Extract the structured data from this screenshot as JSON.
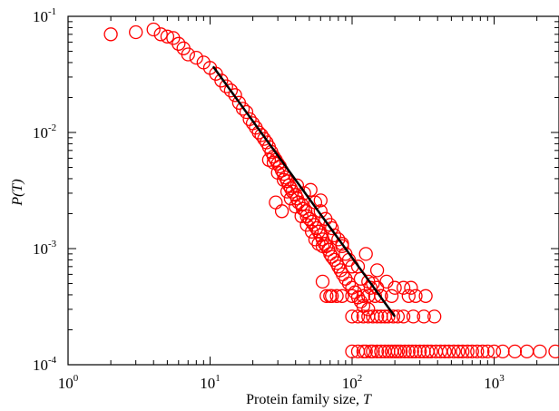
{
  "chart_data": {
    "type": "scatter",
    "title": "",
    "xlabel": "Protein family size, ",
    "xlabel_var": "T",
    "ylabel": "P(T)",
    "xscale": "log",
    "yscale": "log",
    "xlim": [
      1,
      3000
    ],
    "ylim": [
      0.0001,
      0.1
    ],
    "grid": false,
    "legend": "none",
    "x_ticks": [
      {
        "value": 1,
        "base": "10",
        "exp": "0"
      },
      {
        "value": 10,
        "base": "10",
        "exp": "1"
      },
      {
        "value": 100,
        "base": "10",
        "exp": "2"
      },
      {
        "value": 1000,
        "base": "10",
        "exp": "3"
      }
    ],
    "y_ticks": [
      {
        "value": 0.0001,
        "base": "10",
        "exp": "-4"
      },
      {
        "value": 0.001,
        "base": "10",
        "exp": "-3"
      },
      {
        "value": 0.01,
        "base": "10",
        "exp": "-2"
      },
      {
        "value": 0.1,
        "base": "10",
        "exp": "-1"
      }
    ],
    "series": [
      {
        "marker": "open-circle",
        "color": "#ff0000",
        "points": [
          [
            2,
            0.07
          ],
          [
            3,
            0.073
          ],
          [
            4,
            0.077
          ],
          [
            4.5,
            0.07
          ],
          [
            5,
            0.067
          ],
          [
            5.5,
            0.065
          ],
          [
            6,
            0.058
          ],
          [
            6.5,
            0.053
          ],
          [
            7,
            0.047
          ],
          [
            8,
            0.044
          ],
          [
            9,
            0.04
          ],
          [
            10,
            0.036
          ],
          [
            11,
            0.032
          ],
          [
            12,
            0.028
          ],
          [
            13,
            0.025
          ],
          [
            14,
            0.023
          ],
          [
            15,
            0.021
          ],
          [
            16,
            0.018
          ],
          [
            17,
            0.016
          ],
          [
            18,
            0.015
          ],
          [
            19,
            0.013
          ],
          [
            20,
            0.012
          ],
          [
            21,
            0.011
          ],
          [
            22,
            0.01
          ],
          [
            23,
            0.0095
          ],
          [
            24,
            0.0088
          ],
          [
            25,
            0.0082
          ],
          [
            26,
            0.0075
          ],
          [
            27,
            0.0068
          ],
          [
            28,
            0.0062
          ],
          [
            29,
            0.0058
          ],
          [
            30,
            0.0054
          ],
          [
            31,
            0.0051
          ],
          [
            32,
            0.0047
          ],
          [
            33,
            0.0044
          ],
          [
            34,
            0.0041
          ],
          [
            35,
            0.0038
          ],
          [
            36,
            0.0035
          ],
          [
            37,
            0.0033
          ],
          [
            38,
            0.0031
          ],
          [
            40,
            0.0029
          ],
          [
            41,
            0.0027
          ],
          [
            42,
            0.0025
          ],
          [
            44,
            0.0024
          ],
          [
            45,
            0.0022
          ],
          [
            47,
            0.0021
          ],
          [
            48,
            0.0019
          ],
          [
            50,
            0.0018
          ],
          [
            52,
            0.0017
          ],
          [
            54,
            0.0016
          ],
          [
            56,
            0.0015
          ],
          [
            58,
            0.0014
          ],
          [
            60,
            0.0013
          ],
          [
            62,
            0.0012
          ],
          [
            64,
            0.0011
          ],
          [
            66,
            0.00105
          ],
          [
            68,
            0.00098
          ],
          [
            70,
            0.0009
          ],
          [
            72,
            0.00085
          ],
          [
            75,
            0.0008
          ],
          [
            78,
            0.00075
          ],
          [
            80,
            0.0007
          ],
          [
            83,
            0.00065
          ],
          [
            86,
            0.0006
          ],
          [
            90,
            0.00055
          ],
          [
            95,
            0.0005
          ],
          [
            100,
            0.00046
          ],
          [
            105,
            0.00042
          ],
          [
            110,
            0.00038
          ],
          [
            115,
            0.00035
          ],
          [
            120,
            0.00032
          ],
          [
            130,
            0.0003
          ],
          [
            26,
            0.0058
          ],
          [
            28,
            0.0055
          ],
          [
            30,
            0.0045
          ],
          [
            33,
            0.0039
          ],
          [
            35,
            0.0031
          ],
          [
            37,
            0.0027
          ],
          [
            40,
            0.0023
          ],
          [
            44,
            0.0019
          ],
          [
            48,
            0.0016
          ],
          [
            52,
            0.0014
          ],
          [
            55,
            0.0012
          ],
          [
            58,
            0.0011
          ],
          [
            62,
            0.00105
          ],
          [
            29,
            0.0025
          ],
          [
            32,
            0.0021
          ],
          [
            41,
            0.0035
          ],
          [
            46,
            0.003
          ],
          [
            51,
            0.0032
          ],
          [
            55,
            0.0025
          ],
          [
            60,
            0.0021
          ],
          [
            65,
            0.0018
          ],
          [
            70,
            0.0016
          ],
          [
            75,
            0.0013
          ],
          [
            80,
            0.0012
          ],
          [
            85,
            0.00105
          ],
          [
            90,
            0.0009
          ],
          [
            95,
            0.0008
          ],
          [
            100,
            0.0007
          ],
          [
            60,
            0.0026
          ],
          [
            72,
            0.0015
          ],
          [
            85,
            0.0011
          ],
          [
            110,
            0.0007
          ],
          [
            115,
            0.00055
          ],
          [
            125,
            0.0009
          ],
          [
            130,
            0.00052
          ],
          [
            135,
            0.00046
          ],
          [
            140,
            0.0005
          ],
          [
            150,
            0.00065
          ],
          [
            150,
            0.00046
          ],
          [
            160,
            0.00039
          ],
          [
            175,
            0.00052
          ],
          [
            200,
            0.00046
          ],
          [
            230,
            0.00046
          ],
          [
            260,
            0.00046
          ],
          [
            62,
            0.00052
          ],
          [
            66,
            0.00039
          ],
          [
            70,
            0.00039
          ],
          [
            72,
            0.00039
          ],
          [
            78,
            0.00039
          ],
          [
            85,
            0.00039
          ],
          [
            100,
            0.00039
          ],
          [
            120,
            0.00039
          ],
          [
            130,
            0.00039
          ],
          [
            145,
            0.00039
          ],
          [
            160,
            0.00039
          ],
          [
            190,
            0.00039
          ],
          [
            250,
            0.00039
          ],
          [
            280,
            0.00039
          ],
          [
            330,
            0.00039
          ],
          [
            100,
            0.00026
          ],
          [
            110,
            0.00026
          ],
          [
            120,
            0.00026
          ],
          [
            130,
            0.00026
          ],
          [
            140,
            0.00026
          ],
          [
            150,
            0.00026
          ],
          [
            160,
            0.00026
          ],
          [
            170,
            0.00026
          ],
          [
            180,
            0.00026
          ],
          [
            195,
            0.00026
          ],
          [
            210,
            0.00026
          ],
          [
            230,
            0.00026
          ],
          [
            270,
            0.00026
          ],
          [
            320,
            0.00026
          ],
          [
            380,
            0.00026
          ],
          [
            100,
            0.00013
          ],
          [
            110,
            0.00013
          ],
          [
            120,
            0.00013
          ],
          [
            125,
            0.00013
          ],
          [
            135,
            0.00013
          ],
          [
            140,
            0.00013
          ],
          [
            150,
            0.00013
          ],
          [
            160,
            0.00013
          ],
          [
            170,
            0.00013
          ],
          [
            180,
            0.00013
          ],
          [
            190,
            0.00013
          ],
          [
            200,
            0.00013
          ],
          [
            210,
            0.00013
          ],
          [
            220,
            0.00013
          ],
          [
            235,
            0.00013
          ],
          [
            250,
            0.00013
          ],
          [
            265,
            0.00013
          ],
          [
            280,
            0.00013
          ],
          [
            300,
            0.00013
          ],
          [
            320,
            0.00013
          ],
          [
            340,
            0.00013
          ],
          [
            360,
            0.00013
          ],
          [
            390,
            0.00013
          ],
          [
            420,
            0.00013
          ],
          [
            450,
            0.00013
          ],
          [
            480,
            0.00013
          ],
          [
            520,
            0.00013
          ],
          [
            560,
            0.00013
          ],
          [
            600,
            0.00013
          ],
          [
            650,
            0.00013
          ],
          [
            700,
            0.00013
          ],
          [
            760,
            0.00013
          ],
          [
            830,
            0.00013
          ],
          [
            900,
            0.00013
          ],
          [
            1000,
            0.00013
          ],
          [
            1150,
            0.00013
          ],
          [
            1400,
            0.00013
          ],
          [
            1700,
            0.00013
          ],
          [
            2100,
            0.00013
          ],
          [
            2700,
            0.00013
          ]
        ]
      }
    ],
    "fit_line": {
      "color": "#000000",
      "x": [
        10.5,
        200
      ],
      "y": [
        0.037,
        0.00026
      ]
    }
  }
}
